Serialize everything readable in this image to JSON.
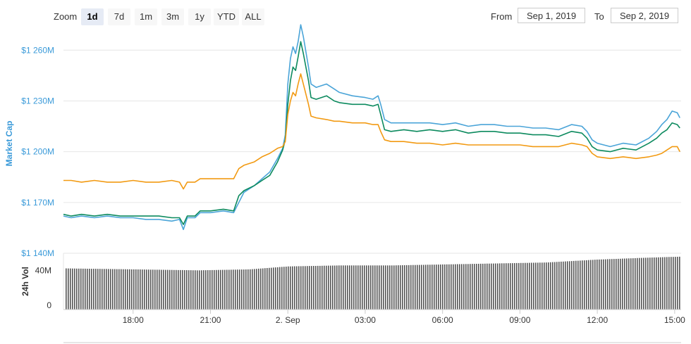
{
  "toolbar": {
    "zoom_label": "Zoom",
    "zoom_buttons": [
      "1d",
      "7d",
      "1m",
      "3m",
      "1y",
      "YTD",
      "ALL"
    ],
    "active_zoom": "1d",
    "from_label": "From",
    "from_value": "Sep 1, 2019",
    "to_label": "To",
    "to_value": "Sep 2, 2019"
  },
  "colors": {
    "blue": "#4aa4d8",
    "green": "#0c8a5e",
    "orange": "#f29a12",
    "volume": "#555555",
    "axis_title": "#3a9ad9"
  },
  "chart_data": {
    "type": "line",
    "title": "",
    "xlabel": "",
    "ylabel": "Market Cap",
    "y_ticks": [
      1140,
      1170,
      1200,
      1230,
      1260
    ],
    "y_tick_labels": [
      "$1 140M",
      "$1 170M",
      "$1 200M",
      "$1 230M",
      "$1 260M"
    ],
    "ylim": [
      1140,
      1273
    ],
    "x_ticks": [
      "18:00",
      "21:00",
      "2. Sep",
      "03:00",
      "06:00",
      "09:00",
      "12:00",
      "15:00"
    ],
    "x_tick_hours": [
      18,
      21,
      24,
      27,
      30,
      33,
      36,
      39
    ],
    "xlim_hours": [
      15.3,
      39.25
    ],
    "grid": true,
    "series": [
      {
        "color": "blue",
        "points": [
          [
            15.3,
            1162
          ],
          [
            15.6,
            1161
          ],
          [
            16.0,
            1162
          ],
          [
            16.5,
            1161
          ],
          [
            17.0,
            1162
          ],
          [
            17.5,
            1161
          ],
          [
            18.0,
            1161
          ],
          [
            18.5,
            1160
          ],
          [
            19.0,
            1160
          ],
          [
            19.5,
            1159
          ],
          [
            19.8,
            1160
          ],
          [
            19.95,
            1154
          ],
          [
            20.1,
            1161
          ],
          [
            20.4,
            1161
          ],
          [
            20.6,
            1164
          ],
          [
            21.0,
            1164
          ],
          [
            21.5,
            1165
          ],
          [
            21.9,
            1164
          ],
          [
            22.1,
            1170
          ],
          [
            22.3,
            1176
          ],
          [
            22.7,
            1180
          ],
          [
            23.0,
            1184
          ],
          [
            23.3,
            1188
          ],
          [
            23.6,
            1196
          ],
          [
            23.8,
            1202
          ],
          [
            23.9,
            1210
          ],
          [
            24.0,
            1240
          ],
          [
            24.1,
            1255
          ],
          [
            24.2,
            1262
          ],
          [
            24.3,
            1258
          ],
          [
            24.4,
            1265
          ],
          [
            24.5,
            1275
          ],
          [
            24.6,
            1268
          ],
          [
            24.8,
            1250
          ],
          [
            24.9,
            1240
          ],
          [
            25.1,
            1238
          ],
          [
            25.5,
            1240
          ],
          [
            25.8,
            1237
          ],
          [
            26.0,
            1235
          ],
          [
            26.5,
            1233
          ],
          [
            27.0,
            1232
          ],
          [
            27.3,
            1231
          ],
          [
            27.5,
            1233
          ],
          [
            27.6,
            1228
          ],
          [
            27.75,
            1219
          ],
          [
            28.0,
            1217
          ],
          [
            28.5,
            1217
          ],
          [
            29.0,
            1217
          ],
          [
            29.5,
            1217
          ],
          [
            30.0,
            1216
          ],
          [
            30.5,
            1217
          ],
          [
            31.0,
            1215
          ],
          [
            31.5,
            1216
          ],
          [
            32.0,
            1216
          ],
          [
            32.5,
            1215
          ],
          [
            33.0,
            1215
          ],
          [
            33.5,
            1214
          ],
          [
            34.0,
            1214
          ],
          [
            34.5,
            1213
          ],
          [
            35.0,
            1216
          ],
          [
            35.4,
            1215
          ],
          [
            35.6,
            1212
          ],
          [
            35.8,
            1207
          ],
          [
            36.0,
            1205
          ],
          [
            36.5,
            1203
          ],
          [
            37.0,
            1205
          ],
          [
            37.5,
            1204
          ],
          [
            38.0,
            1208
          ],
          [
            38.3,
            1212
          ],
          [
            38.5,
            1216
          ],
          [
            38.7,
            1219
          ],
          [
            38.9,
            1224
          ],
          [
            39.1,
            1223
          ],
          [
            39.2,
            1220
          ]
        ]
      },
      {
        "color": "green",
        "points": [
          [
            15.3,
            1163
          ],
          [
            15.6,
            1162
          ],
          [
            16.0,
            1163
          ],
          [
            16.5,
            1162
          ],
          [
            17.0,
            1163
          ],
          [
            17.5,
            1162
          ],
          [
            18.0,
            1162
          ],
          [
            18.5,
            1162
          ],
          [
            19.0,
            1162
          ],
          [
            19.5,
            1161
          ],
          [
            19.8,
            1161
          ],
          [
            19.95,
            1157
          ],
          [
            20.1,
            1162
          ],
          [
            20.4,
            1162
          ],
          [
            20.6,
            1165
          ],
          [
            21.0,
            1165
          ],
          [
            21.5,
            1166
          ],
          [
            21.9,
            1165
          ],
          [
            22.1,
            1174
          ],
          [
            22.3,
            1177
          ],
          [
            22.7,
            1180
          ],
          [
            23.0,
            1183
          ],
          [
            23.3,
            1186
          ],
          [
            23.6,
            1194
          ],
          [
            23.8,
            1201
          ],
          [
            23.9,
            1207
          ],
          [
            24.0,
            1228
          ],
          [
            24.1,
            1242
          ],
          [
            24.2,
            1250
          ],
          [
            24.3,
            1248
          ],
          [
            24.4,
            1256
          ],
          [
            24.5,
            1265
          ],
          [
            24.6,
            1258
          ],
          [
            24.8,
            1242
          ],
          [
            24.9,
            1232
          ],
          [
            25.1,
            1231
          ],
          [
            25.5,
            1233
          ],
          [
            25.8,
            1230
          ],
          [
            26.0,
            1229
          ],
          [
            26.5,
            1228
          ],
          [
            27.0,
            1228
          ],
          [
            27.3,
            1227
          ],
          [
            27.5,
            1228
          ],
          [
            27.6,
            1222
          ],
          [
            27.75,
            1213
          ],
          [
            28.0,
            1212
          ],
          [
            28.5,
            1213
          ],
          [
            29.0,
            1212
          ],
          [
            29.5,
            1213
          ],
          [
            30.0,
            1212
          ],
          [
            30.5,
            1213
          ],
          [
            31.0,
            1211
          ],
          [
            31.5,
            1212
          ],
          [
            32.0,
            1212
          ],
          [
            32.5,
            1211
          ],
          [
            33.0,
            1211
          ],
          [
            33.5,
            1210
          ],
          [
            34.0,
            1210
          ],
          [
            34.5,
            1209
          ],
          [
            35.0,
            1212
          ],
          [
            35.4,
            1211
          ],
          [
            35.6,
            1208
          ],
          [
            35.8,
            1203
          ],
          [
            36.0,
            1201
          ],
          [
            36.5,
            1200
          ],
          [
            37.0,
            1202
          ],
          [
            37.5,
            1201
          ],
          [
            38.0,
            1205
          ],
          [
            38.3,
            1208
          ],
          [
            38.5,
            1211
          ],
          [
            38.7,
            1213
          ],
          [
            38.9,
            1217
          ],
          [
            39.1,
            1216
          ],
          [
            39.2,
            1214
          ]
        ]
      },
      {
        "color": "orange",
        "points": [
          [
            15.3,
            1183
          ],
          [
            15.6,
            1183
          ],
          [
            16.0,
            1182
          ],
          [
            16.5,
            1183
          ],
          [
            17.0,
            1182
          ],
          [
            17.5,
            1182
          ],
          [
            18.0,
            1183
          ],
          [
            18.5,
            1182
          ],
          [
            19.0,
            1182
          ],
          [
            19.5,
            1183
          ],
          [
            19.8,
            1182
          ],
          [
            19.95,
            1178
          ],
          [
            20.1,
            1182
          ],
          [
            20.4,
            1182
          ],
          [
            20.6,
            1184
          ],
          [
            21.0,
            1184
          ],
          [
            21.5,
            1184
          ],
          [
            21.9,
            1184
          ],
          [
            22.1,
            1190
          ],
          [
            22.3,
            1192
          ],
          [
            22.7,
            1194
          ],
          [
            23.0,
            1197
          ],
          [
            23.3,
            1199
          ],
          [
            23.6,
            1202
          ],
          [
            23.8,
            1203
          ],
          [
            23.9,
            1206
          ],
          [
            24.0,
            1222
          ],
          [
            24.1,
            1230
          ],
          [
            24.2,
            1235
          ],
          [
            24.3,
            1233
          ],
          [
            24.4,
            1240
          ],
          [
            24.5,
            1246
          ],
          [
            24.6,
            1240
          ],
          [
            24.8,
            1228
          ],
          [
            24.9,
            1221
          ],
          [
            25.1,
            1220
          ],
          [
            25.5,
            1219
          ],
          [
            25.8,
            1218
          ],
          [
            26.0,
            1218
          ],
          [
            26.5,
            1217
          ],
          [
            27.0,
            1217
          ],
          [
            27.3,
            1216
          ],
          [
            27.5,
            1216
          ],
          [
            27.6,
            1212
          ],
          [
            27.75,
            1207
          ],
          [
            28.0,
            1206
          ],
          [
            28.5,
            1206
          ],
          [
            29.0,
            1205
          ],
          [
            29.5,
            1205
          ],
          [
            30.0,
            1204
          ],
          [
            30.5,
            1205
          ],
          [
            31.0,
            1204
          ],
          [
            31.5,
            1204
          ],
          [
            32.0,
            1204
          ],
          [
            32.5,
            1204
          ],
          [
            33.0,
            1204
          ],
          [
            33.5,
            1203
          ],
          [
            34.0,
            1203
          ],
          [
            34.5,
            1203
          ],
          [
            35.0,
            1205
          ],
          [
            35.4,
            1204
          ],
          [
            35.6,
            1203
          ],
          [
            35.8,
            1199
          ],
          [
            36.0,
            1197
          ],
          [
            36.5,
            1196
          ],
          [
            37.0,
            1197
          ],
          [
            37.5,
            1196
          ],
          [
            38.0,
            1197
          ],
          [
            38.3,
            1198
          ],
          [
            38.5,
            1199
          ],
          [
            38.7,
            1201
          ],
          [
            38.9,
            1203
          ],
          [
            39.1,
            1203
          ],
          [
            39.2,
            1200
          ]
        ]
      }
    ],
    "volume": {
      "ylabel": "24h Vol",
      "y_ticks": [
        0,
        40
      ],
      "y_tick_labels": [
        "0",
        "40M"
      ],
      "ylim": [
        0,
        56
      ],
      "points": [
        [
          15.3,
          42
        ],
        [
          18.0,
          41
        ],
        [
          20.5,
          40
        ],
        [
          22.5,
          41
        ],
        [
          24.0,
          44
        ],
        [
          26.0,
          45
        ],
        [
          28.0,
          45
        ],
        [
          30.0,
          46
        ],
        [
          32.0,
          47
        ],
        [
          34.0,
          48
        ],
        [
          36.0,
          51
        ],
        [
          38.0,
          53
        ],
        [
          39.25,
          54
        ]
      ]
    }
  }
}
